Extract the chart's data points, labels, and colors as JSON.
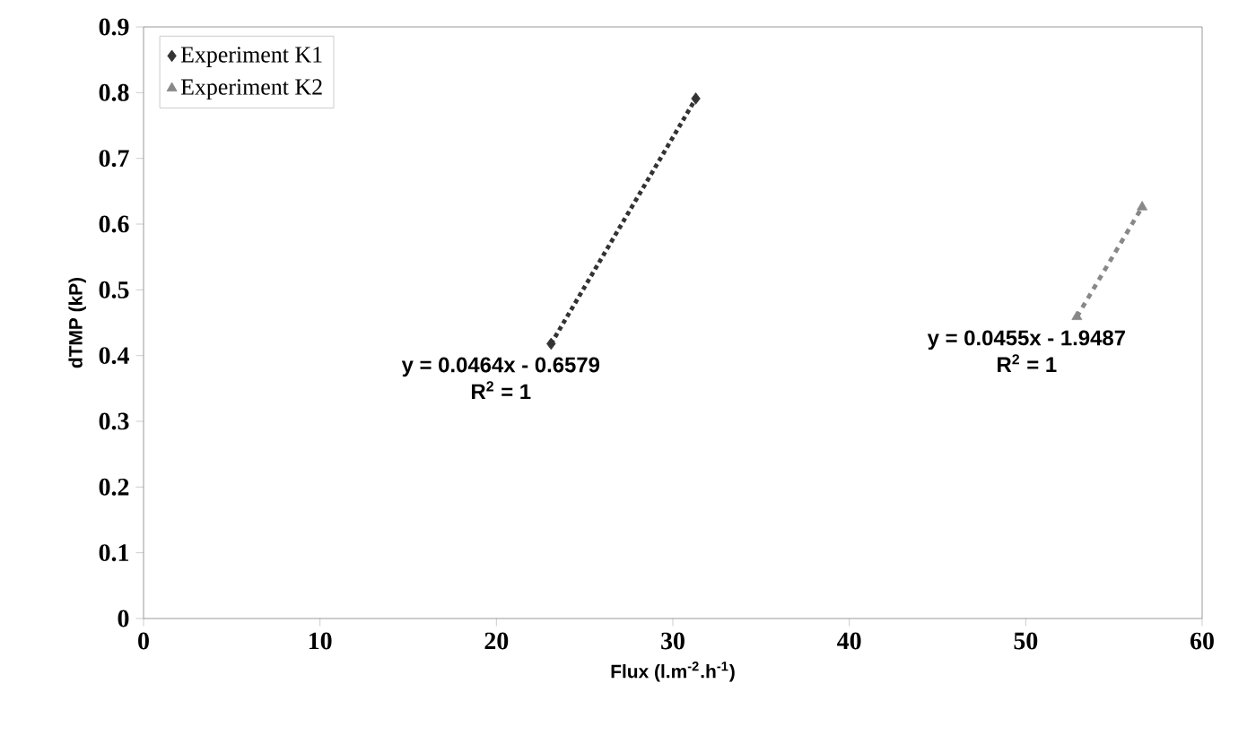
{
  "chart_data": {
    "type": "scatter",
    "xlabel": "Flux (l.m$^{-2}$.h$^{-1}$)",
    "ylabel": "dTMP (kP)",
    "xlim": [
      0,
      60
    ],
    "ylim": [
      0,
      0.9
    ],
    "xticks": [
      0,
      10,
      20,
      30,
      40,
      50,
      60
    ],
    "yticks": [
      0,
      0.1,
      0.2,
      0.3,
      0.4,
      0.5,
      0.6,
      0.7,
      0.8,
      0.9
    ],
    "grid": false,
    "legend": "top left",
    "series": [
      {
        "name": "Experiment K1",
        "marker": "diamond",
        "color": "#333333",
        "x": [
          23.1,
          31.3
        ],
        "values": [
          0.418,
          0.791
        ]
      },
      {
        "name": "Experiment K2",
        "marker": "triangle",
        "color": "#888888",
        "x": [
          52.9,
          56.6
        ],
        "values": [
          0.459,
          0.626
        ]
      },
      {
        "type": "line",
        "line_style": "dotted",
        "color": "#333333",
        "x": [
          23.1,
          31.3
        ],
        "values": [
          0.418,
          0.791
        ]
      },
      {
        "type": "line",
        "line_style": "dashed",
        "color": "#888888",
        "x": [
          52.9,
          56.6
        ],
        "values": [
          0.459,
          0.626
        ]
      }
    ],
    "annotations": [
      "y = 0.0464x - 0.6579",
      "R$^{2}$ = 1",
      "y = 0.0455x - 1.9487",
      "R$^{2}$ = 1"
    ]
  }
}
